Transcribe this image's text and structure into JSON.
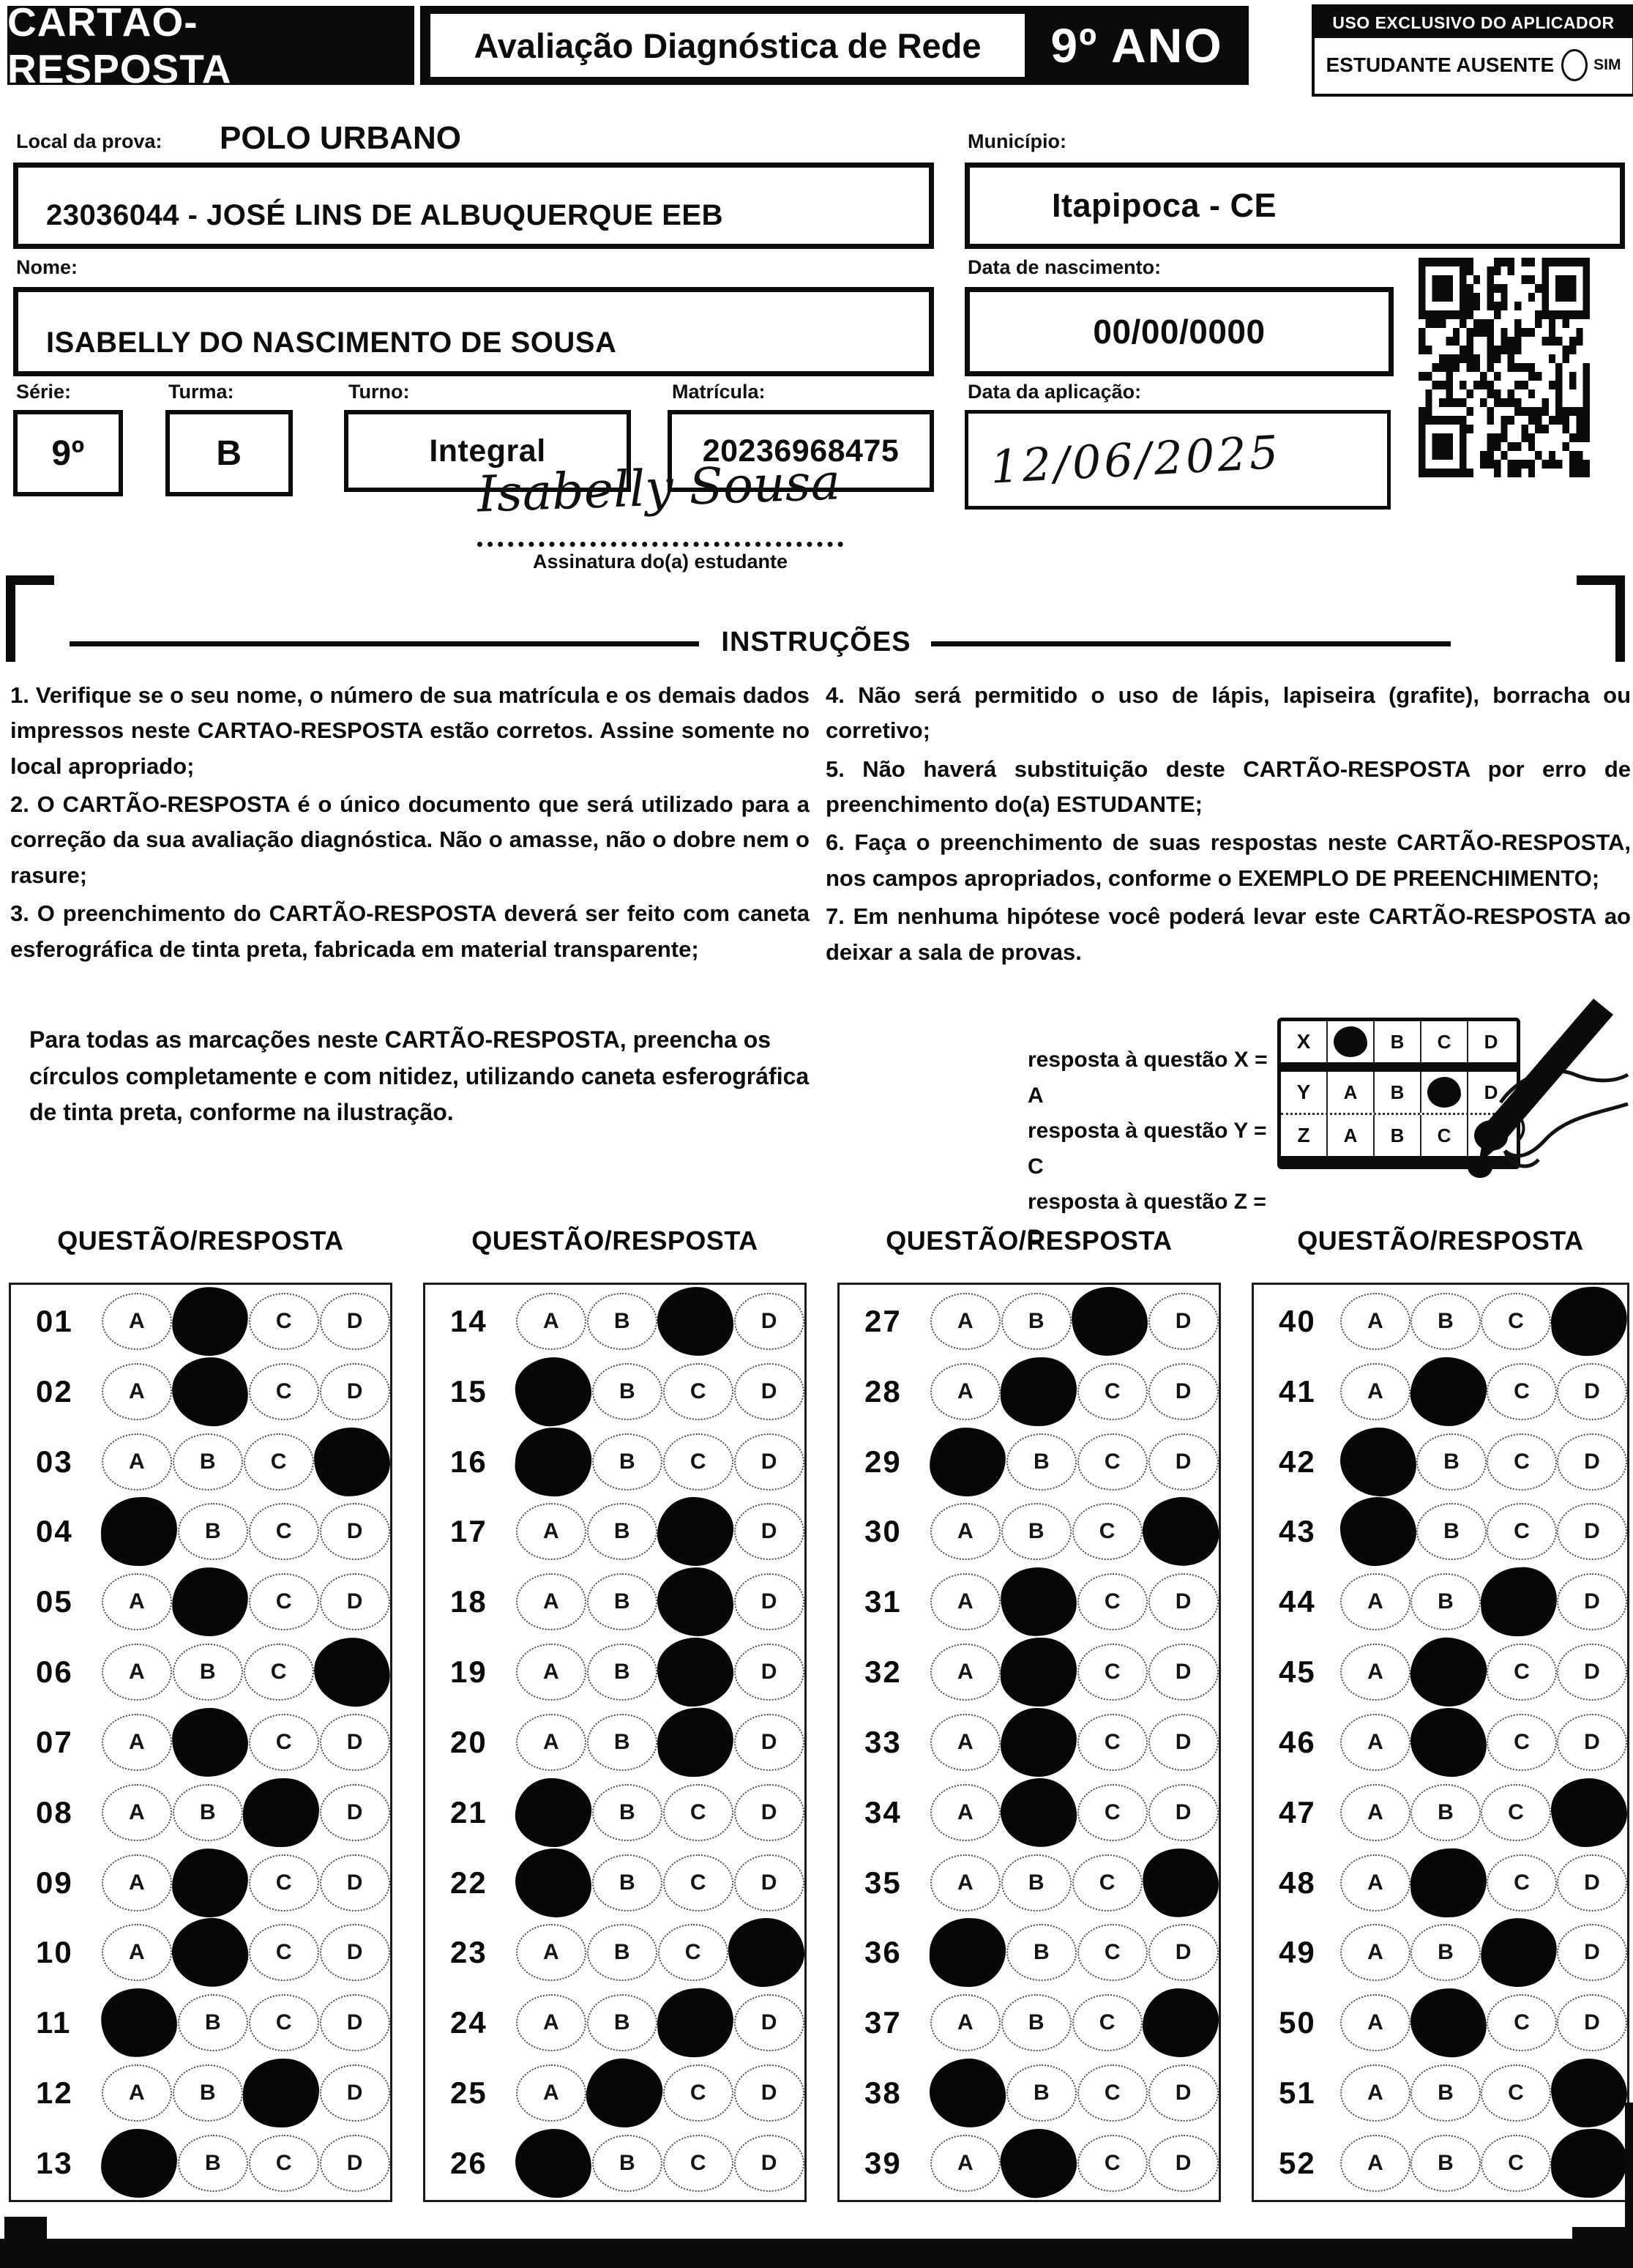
{
  "header": {
    "card_title": "CARTÃO-RESPOSTA",
    "exam_title": "Avaliação Diagnóstica de Rede",
    "grade": "9º ANO",
    "examiner_box_title": "USO EXCLUSIVO DO APLICADOR",
    "absent_label": "ESTUDANTE AUSENTE",
    "absent_option": "SIM"
  },
  "student": {
    "local_label": "Local da prova:",
    "local_value": "POLO URBANO",
    "school": "23036044 - JOSÉ LINS DE ALBUQUERQUE EEB",
    "municipio_label": "Município:",
    "municipio_value": "Itapipoca - CE",
    "nome_label": "Nome:",
    "nome_value": "ISABELLY DO NASCIMENTO DE SOUSA",
    "nascimento_label": "Data de nascimento:",
    "nascimento_value": "00/00/0000",
    "serie_label": "Série:",
    "serie_value": "9º",
    "turma_label": "Turma:",
    "turma_value": "B",
    "turno_label": "Turno:",
    "turno_value": "Integral",
    "matricula_label": "Matrícula:",
    "matricula_value": "20236968475",
    "aplicacao_label": "Data da aplicação:",
    "aplicacao_value": "12/06/2025",
    "assinatura_value": "Isabelly Sousa",
    "assinatura_label": "Assinatura do(a) estudante"
  },
  "instructions": {
    "title": "INSTRUÇÕES",
    "left": [
      "1. Verifique se o seu nome, o número de sua matrícula e os demais dados impressos neste CARTAO-RESPOSTA estão corretos. Assine somente no local apropriado;",
      "2. O CARTÃO-RESPOSTA é o único documento que será utilizado para a correção da sua avaliação diagnóstica. Não o amasse, não o dobre nem o rasure;",
      "3. O preenchimento do CARTÃO-RESPOSTA deverá ser feito com caneta esferográfica de tinta preta, fabricada em material transparente;"
    ],
    "right": [
      "4. Não será permitido o uso de lápis, lapiseira (grafite), borracha ou corretivo;",
      "5. Não haverá substituição deste CARTÃO-RESPOSTA por erro de preenchimento do(a) ESTUDANTE;",
      "6. Faça o preenchimento de suas respostas neste CARTÃO-RESPOSTA, nos campos apropriados, conforme o EXEMPLO DE PREENCHIMENTO;",
      "7. Em nenhuma hipótese você poderá levar este CARTÃO-RESPOSTA ao deixar a sala de provas."
    ]
  },
  "example": {
    "text": "Para todas as marcações neste CARTÃO-RESPOSTA, preencha os círculos completamente e com nitidez, utilizando caneta esferográfica de tinta preta, conforme na ilustração.",
    "legend": [
      "resposta à questão X = A",
      "resposta à questão Y = C",
      "resposta à questão Z = D"
    ],
    "options": [
      "A",
      "B",
      "C",
      "D"
    ],
    "grid": [
      {
        "row": "X",
        "marked": "A"
      },
      {
        "row": "Y",
        "marked": "C"
      },
      {
        "row": "Z",
        "marked": "D"
      }
    ]
  },
  "answers": {
    "column_header": "QUESTÃO/RESPOSTA",
    "options": [
      "A",
      "B",
      "C",
      "D"
    ],
    "marks": [
      {
        "q": "01",
        "marked": "B"
      },
      {
        "q": "02",
        "marked": "B"
      },
      {
        "q": "03",
        "marked": "D"
      },
      {
        "q": "04",
        "marked": "A"
      },
      {
        "q": "05",
        "marked": "B"
      },
      {
        "q": "06",
        "marked": "D"
      },
      {
        "q": "07",
        "marked": "B"
      },
      {
        "q": "08",
        "marked": "C"
      },
      {
        "q": "09",
        "marked": "B"
      },
      {
        "q": "10",
        "marked": "B"
      },
      {
        "q": "11",
        "marked": "A"
      },
      {
        "q": "12",
        "marked": "C"
      },
      {
        "q": "13",
        "marked": "A"
      },
      {
        "q": "14",
        "marked": "C"
      },
      {
        "q": "15",
        "marked": "A"
      },
      {
        "q": "16",
        "marked": "A"
      },
      {
        "q": "17",
        "marked": "C"
      },
      {
        "q": "18",
        "marked": "C"
      },
      {
        "q": "19",
        "marked": "C"
      },
      {
        "q": "20",
        "marked": "C"
      },
      {
        "q": "21",
        "marked": "A"
      },
      {
        "q": "22",
        "marked": "A"
      },
      {
        "q": "23",
        "marked": "D"
      },
      {
        "q": "24",
        "marked": "C"
      },
      {
        "q": "25",
        "marked": "B"
      },
      {
        "q": "26",
        "marked": "A"
      },
      {
        "q": "27",
        "marked": "C"
      },
      {
        "q": "28",
        "marked": "B"
      },
      {
        "q": "29",
        "marked": "A"
      },
      {
        "q": "30",
        "marked": "D"
      },
      {
        "q": "31",
        "marked": "B"
      },
      {
        "q": "32",
        "marked": "B"
      },
      {
        "q": "33",
        "marked": "B"
      },
      {
        "q": "34",
        "marked": "B"
      },
      {
        "q": "35",
        "marked": "D"
      },
      {
        "q": "36",
        "marked": "A"
      },
      {
        "q": "37",
        "marked": "D"
      },
      {
        "q": "38",
        "marked": "A"
      },
      {
        "q": "39",
        "marked": "B"
      },
      {
        "q": "40",
        "marked": "D"
      },
      {
        "q": "41",
        "marked": "B"
      },
      {
        "q": "42",
        "marked": "A"
      },
      {
        "q": "43",
        "marked": "A"
      },
      {
        "q": "44",
        "marked": "C"
      },
      {
        "q": "45",
        "marked": "B"
      },
      {
        "q": "46",
        "marked": "B"
      },
      {
        "q": "47",
        "marked": "D"
      },
      {
        "q": "48",
        "marked": "B"
      },
      {
        "q": "49",
        "marked": "C"
      },
      {
        "q": "50",
        "marked": "B"
      },
      {
        "q": "51",
        "marked": "D"
      },
      {
        "q": "52",
        "marked": "D"
      }
    ]
  },
  "colors": {
    "ink": "#0b0b0b",
    "paper": "#ffffff"
  }
}
